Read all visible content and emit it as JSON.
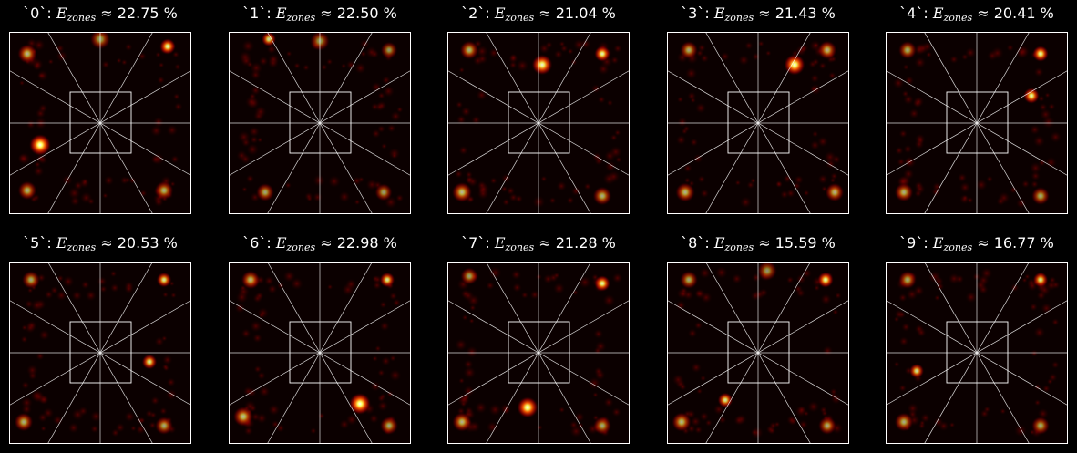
{
  "colors": {
    "background": "#000000",
    "field": "#0b0000",
    "lines": "#ffffff",
    "text": "#ffffff",
    "colormap": "hot"
  },
  "chart_data": [
    {
      "type": "heatmap",
      "digit": "0",
      "energy": "22.75",
      "hotspots": [
        [
          -0.33,
          0.12,
          1.0,
          0.05
        ],
        [
          0.37,
          -0.42,
          0.85,
          0.04
        ],
        [
          0.35,
          0.37,
          0.45,
          0.06
        ],
        [
          -0.4,
          0.37,
          0.45,
          0.06
        ],
        [
          -0.4,
          -0.38,
          0.5,
          0.06
        ],
        [
          0.0,
          -0.46,
          0.35,
          0.07
        ]
      ]
    },
    {
      "type": "heatmap",
      "digit": "1",
      "energy": "22.50",
      "hotspots": [
        [
          -0.28,
          -0.46,
          0.7,
          0.04
        ],
        [
          -0.3,
          0.38,
          0.4,
          0.06
        ],
        [
          0.35,
          0.38,
          0.35,
          0.06
        ],
        [
          0.0,
          -0.45,
          0.3,
          0.07
        ],
        [
          0.38,
          -0.4,
          0.3,
          0.06
        ]
      ]
    },
    {
      "type": "heatmap",
      "digit": "2",
      "energy": "21.04",
      "hotspots": [
        [
          0.02,
          -0.32,
          0.9,
          0.05
        ],
        [
          0.35,
          -0.38,
          0.85,
          0.04
        ],
        [
          -0.42,
          0.38,
          0.55,
          0.06
        ],
        [
          0.35,
          0.4,
          0.45,
          0.06
        ],
        [
          -0.38,
          -0.4,
          0.45,
          0.06
        ]
      ]
    },
    {
      "type": "heatmap",
      "digit": "3",
      "energy": "21.43",
      "hotspots": [
        [
          0.2,
          -0.32,
          0.95,
          0.05
        ],
        [
          -0.4,
          0.38,
          0.5,
          0.06
        ],
        [
          0.42,
          0.38,
          0.45,
          0.06
        ],
        [
          0.38,
          -0.4,
          0.45,
          0.06
        ],
        [
          -0.38,
          -0.4,
          0.4,
          0.06
        ]
      ]
    },
    {
      "type": "heatmap",
      "digit": "4",
      "energy": "20.41",
      "hotspots": [
        [
          0.35,
          -0.38,
          0.85,
          0.04
        ],
        [
          0.3,
          -0.15,
          0.85,
          0.04
        ],
        [
          -0.4,
          0.38,
          0.45,
          0.06
        ],
        [
          0.35,
          0.4,
          0.4,
          0.06
        ],
        [
          -0.38,
          -0.4,
          0.4,
          0.06
        ]
      ]
    },
    {
      "type": "heatmap",
      "digit": "5",
      "energy": "20.53",
      "hotspots": [
        [
          0.35,
          -0.4,
          0.75,
          0.04
        ],
        [
          0.27,
          0.05,
          0.75,
          0.04
        ],
        [
          -0.42,
          0.38,
          0.45,
          0.06
        ],
        [
          0.35,
          0.4,
          0.4,
          0.06
        ],
        [
          -0.38,
          -0.4,
          0.4,
          0.06
        ]
      ]
    },
    {
      "type": "heatmap",
      "digit": "6",
      "energy": "22.98",
      "hotspots": [
        [
          0.22,
          0.28,
          1.0,
          0.05
        ],
        [
          0.37,
          -0.4,
          0.75,
          0.04
        ],
        [
          -0.42,
          0.35,
          0.55,
          0.06
        ],
        [
          -0.38,
          -0.4,
          0.45,
          0.06
        ],
        [
          0.38,
          0.4,
          0.4,
          0.06
        ]
      ]
    },
    {
      "type": "heatmap",
      "digit": "7",
      "energy": "21.28",
      "hotspots": [
        [
          -0.06,
          0.3,
          0.95,
          0.05
        ],
        [
          0.35,
          -0.38,
          0.85,
          0.04
        ],
        [
          -0.42,
          0.38,
          0.5,
          0.06
        ],
        [
          0.35,
          0.4,
          0.4,
          0.06
        ],
        [
          -0.38,
          -0.42,
          0.35,
          0.06
        ]
      ]
    },
    {
      "type": "heatmap",
      "digit": "8",
      "energy": "15.59",
      "hotspots": [
        [
          0.37,
          -0.4,
          0.85,
          0.04
        ],
        [
          -0.18,
          0.26,
          0.75,
          0.04
        ],
        [
          -0.42,
          0.38,
          0.5,
          0.06
        ],
        [
          0.38,
          0.4,
          0.4,
          0.06
        ],
        [
          -0.38,
          -0.4,
          0.4,
          0.06
        ],
        [
          0.05,
          -0.45,
          0.3,
          0.07
        ]
      ]
    },
    {
      "type": "heatmap",
      "digit": "9",
      "energy": "16.77",
      "hotspots": [
        [
          0.35,
          -0.4,
          0.75,
          0.04
        ],
        [
          -0.33,
          0.1,
          0.7,
          0.04
        ],
        [
          -0.4,
          0.38,
          0.45,
          0.06
        ],
        [
          0.35,
          0.4,
          0.4,
          0.06
        ],
        [
          -0.38,
          -0.4,
          0.4,
          0.06
        ]
      ]
    }
  ]
}
